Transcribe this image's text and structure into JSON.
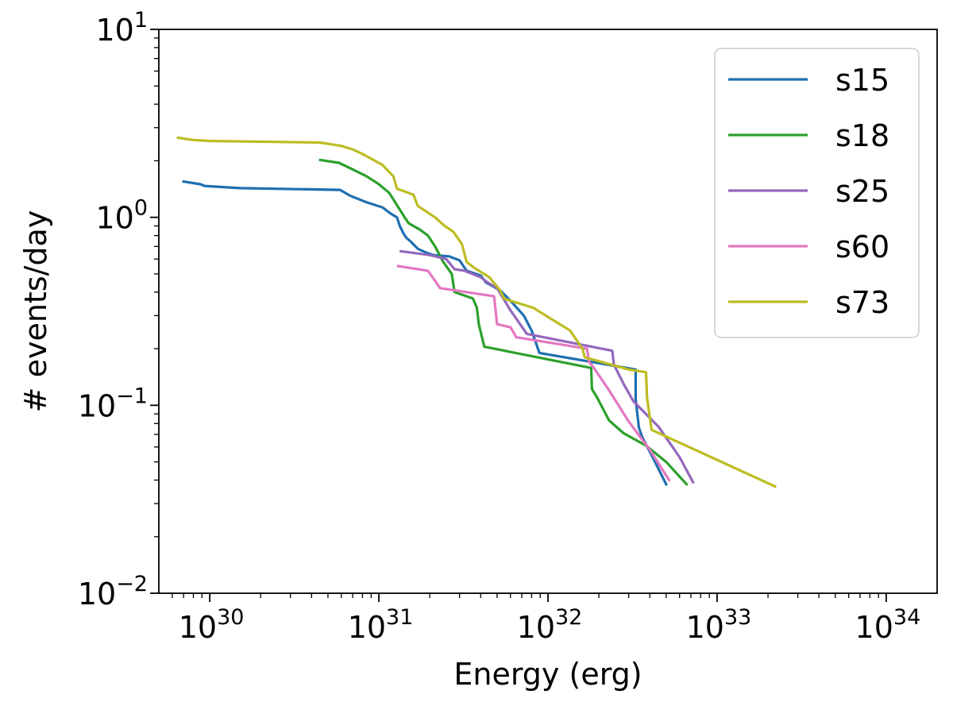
{
  "chart_data": {
    "type": "line",
    "xscale": "log",
    "yscale": "log",
    "xlabel": "Energy (erg)",
    "ylabel": "# events/day",
    "xlim": [
      5e+29,
      2e+34
    ],
    "ylim": [
      0.01,
      10
    ],
    "x_ticks": [
      {
        "value": 1e+30,
        "base": "10",
        "exp": "30"
      },
      {
        "value": 1e+31,
        "base": "10",
        "exp": "31"
      },
      {
        "value": 1e+32,
        "base": "10",
        "exp": "32"
      },
      {
        "value": 1e+33,
        "base": "10",
        "exp": "33"
      },
      {
        "value": 1e+34,
        "base": "10",
        "exp": "34"
      }
    ],
    "y_ticks": [
      {
        "value": 0.01,
        "base": "10",
        "exp": "−2"
      },
      {
        "value": 0.1,
        "base": "10",
        "exp": "−1"
      },
      {
        "value": 1,
        "base": "10",
        "exp": "0"
      },
      {
        "value": 10,
        "base": "10",
        "exp": "1"
      }
    ],
    "legend_position": "top-right",
    "series": [
      {
        "name": "s15",
        "color": "#1f6fb0",
        "x": [
          7e+29,
          8.8e+29,
          9.3e+29,
          1.5e+30,
          5.9e+30,
          6.8e+30,
          8.5e+30,
          1.05e+31,
          1.17e+31,
          1.28e+31,
          1.33e+31,
          1.4e+31,
          1.45e+31,
          1.55e+31,
          1.7e+31,
          1.9e+31,
          2.1e+31,
          2.6e+31,
          3e+31,
          3.3e+31,
          4e+31,
          4.3e+31,
          5.2e+31,
          6e+31,
          7.2e+31,
          8e+31,
          8.9e+31,
          3.3e+32,
          3.3e+32,
          3.45e+32,
          3.6e+32,
          4.2e+32,
          5e+32
        ],
        "y": [
          1.55,
          1.5,
          1.47,
          1.43,
          1.4,
          1.3,
          1.2,
          1.13,
          1.05,
          1.0,
          0.9,
          0.82,
          0.78,
          0.74,
          0.68,
          0.65,
          0.63,
          0.62,
          0.59,
          0.52,
          0.49,
          0.45,
          0.41,
          0.36,
          0.3,
          0.25,
          0.19,
          0.155,
          0.108,
          0.076,
          0.068,
          0.052,
          0.038
        ]
      },
      {
        "name": "s18",
        "color": "#2ca02c",
        "x": [
          4.5e+30,
          5.8e+30,
          7e+30,
          8.5e+30,
          1e+31,
          1.15e+31,
          1.25e+31,
          1.42e+31,
          1.5e+31,
          1.75e+31,
          1.95e+31,
          2.15e+31,
          2.4e+31,
          2.7e+31,
          2.8e+31,
          3.6e+31,
          3.8e+31,
          3.9e+31,
          4.2e+31,
          1.8e+32,
          1.82e+32,
          1.95e+32,
          2.3e+32,
          2.8e+32,
          3.8e+32,
          5e+32,
          6.6e+32
        ],
        "y": [
          2.02,
          1.95,
          1.8,
          1.65,
          1.5,
          1.35,
          1.2,
          1.0,
          0.93,
          0.86,
          0.8,
          0.7,
          0.58,
          0.5,
          0.4,
          0.37,
          0.33,
          0.27,
          0.205,
          0.158,
          0.122,
          0.11,
          0.083,
          0.071,
          0.061,
          0.05,
          0.038
        ]
      },
      {
        "name": "s25",
        "color": "#9467bd",
        "x": [
          1.35e+31,
          2e+31,
          2.5e+31,
          2.8e+31,
          3.2e+31,
          4e+31,
          4.4e+31,
          5e+31,
          6e+31,
          7.5e+31,
          2.4e+32,
          2.45e+32,
          2.8e+32,
          3.2e+32,
          4.5e+32,
          6e+32,
          7.2e+32
        ],
        "y": [
          0.66,
          0.63,
          0.6,
          0.53,
          0.52,
          0.48,
          0.45,
          0.42,
          0.32,
          0.24,
          0.195,
          0.165,
          0.13,
          0.105,
          0.077,
          0.053,
          0.039
        ]
      },
      {
        "name": "s60",
        "color": "#e377c2",
        "x": [
          1.3e+31,
          1.95e+31,
          2.15e+31,
          2.3e+31,
          4.8e+31,
          4.85e+31,
          5e+31,
          6e+31,
          6.5e+31,
          1.7e+32,
          1.75e+32,
          1.85e+32,
          2.3e+32,
          3e+32,
          4e+32,
          5.2e+32
        ],
        "y": [
          0.55,
          0.52,
          0.46,
          0.42,
          0.38,
          0.35,
          0.27,
          0.26,
          0.23,
          0.2,
          0.17,
          0.16,
          0.12,
          0.082,
          0.058,
          0.04
        ]
      },
      {
        "name": "s73",
        "color": "#bcbd22",
        "x": [
          6.5e+29,
          8e+29,
          1e+30,
          4.5e+30,
          6e+30,
          7e+30,
          8.2e+30,
          1.05e+31,
          1.22e+31,
          1.28e+31,
          1.6e+31,
          1.7e+31,
          2.15e+31,
          2.45e+31,
          2.75e+31,
          3.1e+31,
          3.3e+31,
          3.65e+31,
          4.5e+31,
          5.2e+31,
          5.5e+31,
          6e+31,
          8.2e+31,
          1.1e+32,
          1.35e+32,
          1.6e+32,
          1.65e+32,
          3e+32,
          3.8e+32,
          3.85e+32,
          4.1e+32,
          2.2e+33
        ],
        "y": [
          2.65,
          2.58,
          2.55,
          2.5,
          2.4,
          2.3,
          2.15,
          1.9,
          1.65,
          1.42,
          1.32,
          1.15,
          1.0,
          0.9,
          0.84,
          0.72,
          0.58,
          0.54,
          0.48,
          0.41,
          0.37,
          0.36,
          0.33,
          0.28,
          0.25,
          0.2,
          0.18,
          0.155,
          0.15,
          0.11,
          0.074,
          0.037
        ]
      }
    ]
  }
}
